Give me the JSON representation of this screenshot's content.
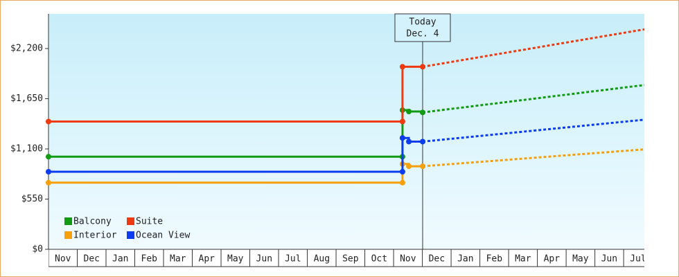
{
  "chart_data": {
    "type": "step-line",
    "categories": [
      "Nov",
      "Dec",
      "Jan",
      "Feb",
      "Mar",
      "Apr",
      "May",
      "Jun",
      "Jul",
      "Aug",
      "Sep",
      "Oct",
      "Nov",
      "Dec",
      "Jan",
      "Feb",
      "Mar",
      "Apr",
      "May",
      "Jun",
      "Jul"
    ],
    "xlim": [
      0,
      20.72
    ],
    "ylim": [
      0,
      2580
    ],
    "yticks": [
      {
        "value": 0,
        "label": "$0"
      },
      {
        "value": 550,
        "label": "$550"
      },
      {
        "value": 1100,
        "label": "$1,100"
      },
      {
        "value": 1650,
        "label": "$1,650"
      },
      {
        "value": 2200,
        "label": "$2,200"
      }
    ],
    "annotation": {
      "x": 13.01,
      "lines": [
        "Today",
        "Dec. 4"
      ]
    },
    "legend": "lower left",
    "series": [
      {
        "name": "Balcony",
        "color": "#129a12",
        "x": [
          0,
          12.31,
          12.31,
          12.31,
          12.53,
          13.01
        ],
        "values": [
          1015,
          1015,
          1220,
          1525,
          1510,
          1500
        ],
        "projection": {
          "x": [
            13.01,
            20.72
          ],
          "values": [
            1500,
            1800
          ]
        }
      },
      {
        "name": "Suite",
        "color": "#ee3a10",
        "x": [
          0,
          12.31,
          12.31,
          13.01
        ],
        "values": [
          1400,
          1400,
          2000,
          2000
        ],
        "projection": {
          "x": [
            13.01,
            20.72
          ],
          "values": [
            2000,
            2410
          ]
        }
      },
      {
        "name": "Interior",
        "color": "#f5a00c",
        "x": [
          0,
          12.31,
          12.31,
          12.53,
          13.01
        ],
        "values": [
          730,
          730,
          935,
          910,
          910
        ],
        "projection": {
          "x": [
            13.01,
            20.72
          ],
          "values": [
            910,
            1095
          ]
        }
      },
      {
        "name": "Ocean View",
        "color": "#0b3cf0",
        "x": [
          0,
          12.31,
          12.31,
          12.53,
          13.01
        ],
        "values": [
          850,
          850,
          1220,
          1180,
          1180
        ],
        "projection": {
          "x": [
            13.01,
            20.72
          ],
          "values": [
            1180,
            1420
          ]
        }
      }
    ]
  }
}
